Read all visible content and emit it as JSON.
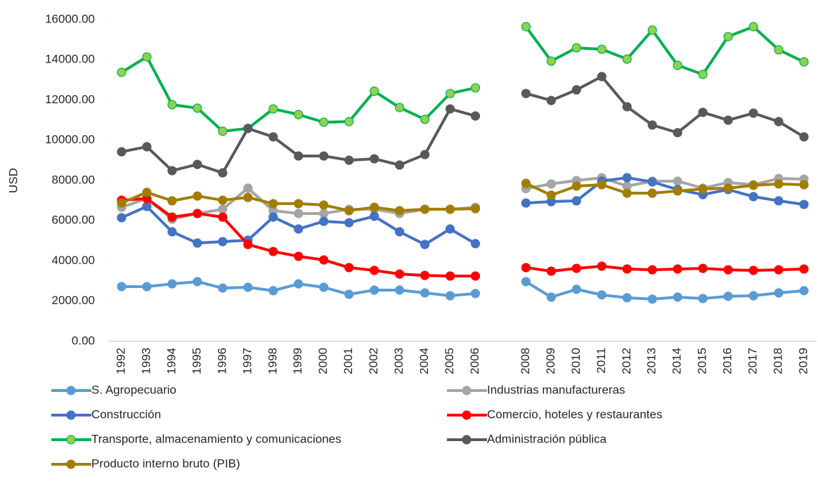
{
  "chart_data": {
    "type": "line",
    "y_label": "USD",
    "categories": [
      "1992",
      "1993",
      "1994",
      "1995",
      "1996",
      "1997",
      "1998",
      "1999",
      "2000",
      "2001",
      "2002",
      "2003",
      "2004",
      "2005",
      "2006",
      null,
      "2008",
      "2009",
      "2010",
      "2011",
      "2012",
      "2013",
      "2014",
      "2015",
      "2016",
      "2017",
      "2018",
      "2019"
    ],
    "ylim": [
      0,
      16000
    ],
    "yticks": [
      {
        "value": 0,
        "label": "0.00"
      },
      {
        "value": 2000,
        "label": "2000.00"
      },
      {
        "value": 4000,
        "label": "4000.00"
      },
      {
        "value": 6000,
        "label": "6000.00"
      },
      {
        "value": 8000,
        "label": "8000.00"
      },
      {
        "value": 10000,
        "label": "10000.00"
      },
      {
        "value": 12000,
        "label": "12000.00"
      },
      {
        "value": 14000,
        "label": "14000.00"
      },
      {
        "value": 16000,
        "label": "16000.00"
      }
    ],
    "grid": false,
    "series": [
      {
        "name": "S. Agropecuario",
        "color": "#5b9bd5",
        "values": [
          2725,
          2720,
          2860,
          2970,
          2650,
          2690,
          2520,
          2860,
          2690,
          2340,
          2550,
          2550,
          2410,
          2270,
          2380,
          null,
          2970,
          2200,
          2590,
          2310,
          2170,
          2100,
          2200,
          2130,
          2240,
          2270,
          2410,
          2520
        ]
      },
      {
        "name": "Industrias manufactureras",
        "color": "#a5a5a5",
        "values": [
          6670,
          7100,
          6080,
          6360,
          6570,
          7620,
          6500,
          6360,
          6360,
          6570,
          6570,
          6360,
          6570,
          6570,
          6670,
          null,
          7600,
          7830,
          8000,
          8140,
          7720,
          7970,
          7970,
          7620,
          7900,
          7790,
          8100,
          8070
        ]
      },
      {
        "name": "Construcción",
        "color": "#4472c4",
        "values": [
          6150,
          6710,
          5450,
          4890,
          4960,
          5030,
          6180,
          5590,
          5970,
          5900,
          6220,
          5450,
          4820,
          5590,
          4860,
          null,
          6880,
          6950,
          6990,
          7970,
          8140,
          7930,
          7550,
          7300,
          7550,
          7200,
          6990,
          6810
        ]
      },
      {
        "name": "Comercio, hoteles y restaurantes",
        "color": "#ff0000",
        "values": [
          7020,
          7100,
          6180,
          6360,
          6180,
          4820,
          4470,
          4230,
          4050,
          3670,
          3530,
          3350,
          3280,
          3250,
          3250,
          null,
          3670,
          3490,
          3630,
          3740,
          3600,
          3560,
          3600,
          3630,
          3560,
          3530,
          3560,
          3600
        ]
      },
      {
        "name": "Transporte, almacenamiento y comunicaciones",
        "color": "#00b050",
        "marker_fill": "#92d050",
        "values": [
          13380,
          14150,
          11770,
          11600,
          10450,
          10590,
          11560,
          11280,
          10900,
          10930,
          12440,
          11630,
          11040,
          12330,
          12610,
          null,
          15650,
          13940,
          14600,
          14530,
          14040,
          15480,
          13730,
          13280,
          15160,
          15650,
          14500,
          13900
        ]
      },
      {
        "name": "Administración pública",
        "color": "#595959",
        "values": [
          9430,
          9680,
          8490,
          8800,
          8380,
          10590,
          10170,
          9220,
          9220,
          9010,
          9080,
          8770,
          9290,
          11560,
          11210,
          null,
          12330,
          11980,
          12510,
          13170,
          11670,
          10760,
          10380,
          11390,
          11000,
          11350,
          10930,
          10170
        ]
      },
      {
        "name": "Producto interno bruto (PIB)",
        "color": "#a17e00",
        "values": [
          6880,
          7410,
          6990,
          7230,
          7020,
          7160,
          6850,
          6850,
          6780,
          6500,
          6670,
          6500,
          6570,
          6570,
          6600,
          null,
          7860,
          7270,
          7720,
          7790,
          7370,
          7370,
          7480,
          7580,
          7620,
          7760,
          7830,
          7790
        ]
      }
    ]
  }
}
